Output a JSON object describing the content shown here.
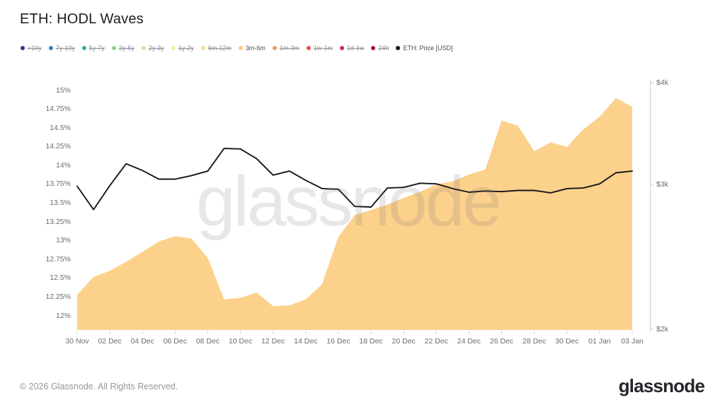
{
  "header": {
    "title": "ETH: HODL Waves"
  },
  "watermark": {
    "text": "glassnode"
  },
  "footer": {
    "copyright": "© 2026 Glassnode. All Rights Reserved.",
    "logo_text": "glassnode"
  },
  "legend": {
    "items": [
      {
        "label": ">10y",
        "color": "#3c3584",
        "disabled": true
      },
      {
        "label": "7y-10y",
        "color": "#3a7fc1",
        "disabled": true
      },
      {
        "label": "5y-7y",
        "color": "#30b1a2",
        "disabled": true
      },
      {
        "label": "3y-5y",
        "color": "#90d08c",
        "disabled": true
      },
      {
        "label": "2y-3y",
        "color": "#cde79f",
        "disabled": true
      },
      {
        "label": "1y-2y",
        "color": "#f4f1ab",
        "disabled": true
      },
      {
        "label": "6m-12m",
        "color": "#f8e284",
        "disabled": true
      },
      {
        "label": "3m-6m",
        "color": "#fbc97a",
        "disabled": false
      },
      {
        "label": "1m-3m",
        "color": "#f29b58",
        "disabled": true
      },
      {
        "label": "1w-1m",
        "color": "#e4564a",
        "disabled": true
      },
      {
        "label": "1d-1w",
        "color": "#cb323e",
        "disabled": true
      },
      {
        "label": "24h",
        "color": "#a2123f",
        "disabled": true
      },
      {
        "label": "ETH: Price [USD]",
        "color": "#111111",
        "disabled": false
      }
    ]
  },
  "chart_data": {
    "type": "area",
    "title": "ETH: HODL Waves",
    "grid": "off",
    "legend_position": "top-left",
    "x": [
      "30 Nov",
      "01 Dec",
      "02 Dec",
      "03 Dec",
      "04 Dec",
      "05 Dec",
      "06 Dec",
      "07 Dec",
      "08 Dec",
      "09 Dec",
      "10 Dec",
      "11 Dec",
      "12 Dec",
      "13 Dec",
      "14 Dec",
      "15 Dec",
      "16 Dec",
      "17 Dec",
      "18 Dec",
      "19 Dec",
      "20 Dec",
      "21 Dec",
      "22 Dec",
      "23 Dec",
      "24 Dec",
      "25 Dec",
      "26 Dec",
      "27 Dec",
      "28 Dec",
      "29 Dec",
      "30 Dec",
      "31 Dec",
      "01 Jan",
      "02 Jan",
      "03 Jan"
    ],
    "x_tick_labels": [
      "30 Nov",
      "02 Dec",
      "04 Dec",
      "06 Dec",
      "08 Dec",
      "10 Dec",
      "12 Dec",
      "14 Dec",
      "16 Dec",
      "18 Dec",
      "20 Dec",
      "22 Dec",
      "24 Dec",
      "26 Dec",
      "28 Dec",
      "30 Dec",
      "01 Jan",
      "03 Jan"
    ],
    "series": [
      {
        "name": "3m-6m",
        "type": "area",
        "axis": "left",
        "unit": "percent_of_supply",
        "color": "#fcd18b",
        "values": [
          12.28,
          12.52,
          12.6,
          12.72,
          12.85,
          12.99,
          13.06,
          13.03,
          12.77,
          12.22,
          12.24,
          12.31,
          12.13,
          12.14,
          12.22,
          12.42,
          13.05,
          13.34,
          13.41,
          13.48,
          13.57,
          13.65,
          13.75,
          13.79,
          13.88,
          13.95,
          14.6,
          14.53,
          14.19,
          14.31,
          14.25,
          14.48,
          14.65,
          14.9,
          14.78
        ]
      },
      {
        "name": "ETH: Price [USD]",
        "type": "line",
        "axis": "right",
        "unit": "USD",
        "color": "#17171c",
        "values": [
          2990,
          2800,
          2995,
          3185,
          3125,
          3050,
          3050,
          3080,
          3120,
          3325,
          3320,
          3230,
          3085,
          3120,
          3040,
          2970,
          2965,
          2825,
          2820,
          2975,
          2980,
          3015,
          3010,
          2970,
          2940,
          2950,
          2945,
          2955,
          2955,
          2935,
          2970,
          2975,
          3010,
          3105,
          3120
        ]
      }
    ],
    "left_axis": {
      "tick_labels": [
        "15%",
        "14.75%",
        "14.5%",
        "14.25%",
        "14%",
        "13.75%",
        "13.5%",
        "13.25%",
        "13%",
        "12.75%",
        "12.5%",
        "12.25%",
        "12%"
      ],
      "tick_values": [
        15,
        14.75,
        14.5,
        14.25,
        14,
        13.75,
        13.5,
        13.25,
        13,
        12.75,
        12.5,
        12.25,
        12
      ],
      "range": [
        11.8,
        15.2
      ],
      "scale": "linear"
    },
    "right_axis": {
      "tick_labels": [
        "$4k",
        "$3k",
        "$2k"
      ],
      "tick_values": [
        4000,
        3000,
        2000
      ],
      "range": [
        2000,
        4000
      ],
      "scale": "log"
    }
  }
}
